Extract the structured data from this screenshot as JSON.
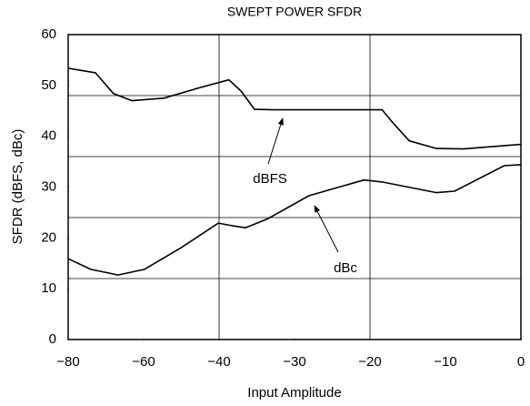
{
  "chart_data": {
    "type": "line",
    "title": "SWEPT POWER SFDR",
    "xlabel": "Input Amplitude",
    "ylabel": "SFDR (dBFS, dBc)",
    "xticks": [
      {
        "value": -80,
        "label": "−80"
      },
      {
        "value": -60,
        "label": "−60"
      },
      {
        "value": -40,
        "label": "−40"
      },
      {
        "value": -30,
        "label": "−30"
      },
      {
        "value": -20,
        "label": "−20"
      },
      {
        "value": -10,
        "label": "−10"
      },
      {
        "value": 0,
        "label": "0"
      }
    ],
    "xlim": [
      -80,
      0
    ],
    "ylim": [
      0,
      60
    ],
    "yticks": [
      0,
      10,
      20,
      30,
      40,
      50,
      60
    ],
    "xgrid": [
      -40,
      -20
    ],
    "ygrid": [
      12,
      24,
      36,
      48
    ],
    "color": "#000000",
    "series": [
      {
        "name": "dBFS",
        "x": [
          -80,
          -72.8,
          -68,
          -63.1,
          -54.6,
          -45,
          -38.7,
          -37.1,
          -35.3,
          -32.9,
          -18.4,
          -17,
          -14.8,
          -11.2,
          -7.6,
          0
        ],
        "values": [
          53.4,
          52.5,
          48.4,
          47,
          47.5,
          49.6,
          51.1,
          48.9,
          45.3,
          45.2,
          45.2,
          42.7,
          39.1,
          37.6,
          37.5,
          38.4
        ]
      },
      {
        "name": "dBc",
        "x": [
          -80,
          -74,
          -66.8,
          -59.8,
          -50,
          -40.2,
          -38.3,
          -36.5,
          -33.5,
          -28.1,
          -20.8,
          -18.4,
          -11.2,
          -8.8,
          -2.2,
          0
        ],
        "values": [
          15.9,
          13.8,
          12.7,
          13.8,
          18.1,
          22.9,
          22.4,
          22,
          23.8,
          28.3,
          31.4,
          31,
          28.9,
          29.2,
          34.2,
          34.4
        ]
      }
    ]
  }
}
